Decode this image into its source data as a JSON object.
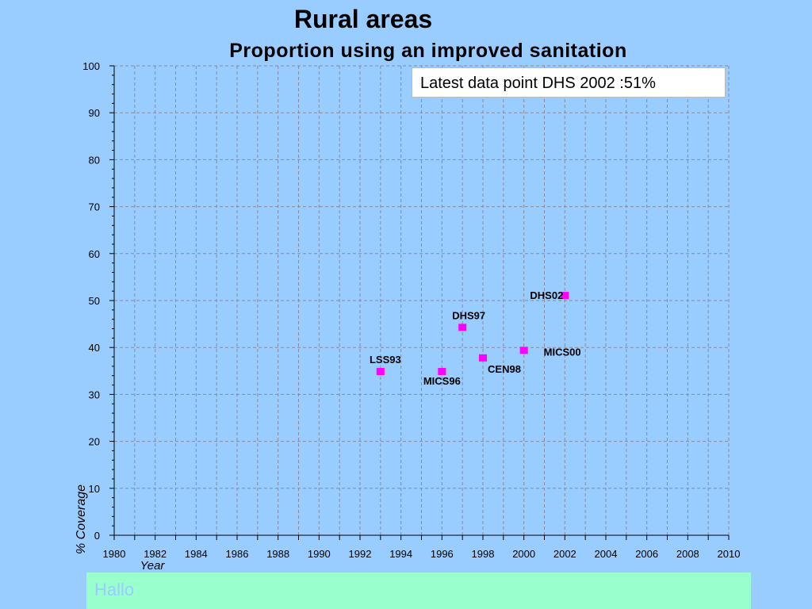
{
  "chart_data": {
    "type": "scatter",
    "title": "Rural areas",
    "subtitle": "Proportion using an improved sanitation",
    "xlabel": "Year",
    "ylabel": "% Coverage",
    "xlim": [
      1980,
      2010
    ],
    "ylim": [
      0,
      100
    ],
    "x_ticks": [
      1980,
      1982,
      1984,
      1986,
      1988,
      1990,
      1992,
      1994,
      1996,
      1998,
      2000,
      2002,
      2004,
      2006,
      2008,
      2010
    ],
    "y_ticks": [
      0,
      10,
      20,
      30,
      40,
      50,
      60,
      70,
      80,
      90,
      100
    ],
    "grid": true,
    "points": [
      {
        "label": "LSS93",
        "x": 1993,
        "y": 34.8
      },
      {
        "label": "MICS96",
        "x": 1996,
        "y": 34.8
      },
      {
        "label": "DHS97",
        "x": 1997,
        "y": 44.2
      },
      {
        "label": "CEN98",
        "x": 1998,
        "y": 37.7
      },
      {
        "label": "MICS00",
        "x": 2000,
        "y": 39.3
      },
      {
        "label": "DHS02",
        "x": 2002,
        "y": 51.0
      }
    ],
    "annotation": "Latest data point DHS 2002 :51%",
    "marker_color": "#ff00ff"
  },
  "footer": {
    "text": "Hallo"
  }
}
